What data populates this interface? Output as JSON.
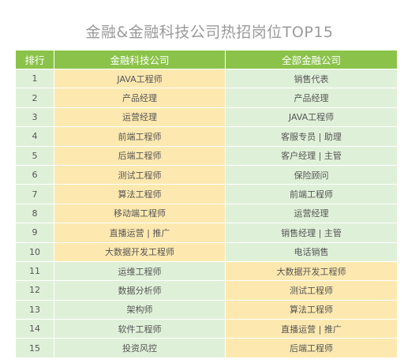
{
  "title": "金融&金融科技公司热招岗位TOP15",
  "headers": {
    "rank": "排行",
    "fintech": "金融科技公司",
    "finance": "全部金融公司"
  },
  "colors": {
    "header": "#8bc34a",
    "green": "#dff0d8",
    "yellow": "#fde9b0"
  },
  "rows": [
    {
      "rank": "1",
      "fintech": "JAVA工程师",
      "finance": "销售代表"
    },
    {
      "rank": "2",
      "fintech": "产品经理",
      "finance": "产品经理"
    },
    {
      "rank": "3",
      "fintech": "运营经理",
      "finance": "JAVA工程师"
    },
    {
      "rank": "4",
      "fintech": "前端工程师",
      "finance": "客服专员 | 助理"
    },
    {
      "rank": "5",
      "fintech": "后端工程师",
      "finance": "客户经理 | 主管"
    },
    {
      "rank": "6",
      "fintech": "测试工程师",
      "finance": "保险顾问"
    },
    {
      "rank": "7",
      "fintech": "算法工程师",
      "finance": "前端工程师"
    },
    {
      "rank": "8",
      "fintech": "移动端工程师",
      "finance": "运营经理"
    },
    {
      "rank": "9",
      "fintech": "直播运营 | 推广",
      "finance": "销售经理 | 主管"
    },
    {
      "rank": "10",
      "fintech": "大数据开发工程师",
      "finance": "电话销售"
    },
    {
      "rank": "11",
      "fintech": "运维工程师",
      "finance": "大数据开发工程师"
    },
    {
      "rank": "12",
      "fintech": "数据分析师",
      "finance": "测试工程师"
    },
    {
      "rank": "13",
      "fintech": "架构师",
      "finance": "算法工程师"
    },
    {
      "rank": "14",
      "fintech": "软件工程师",
      "finance": "直播运营 | 推广"
    },
    {
      "rank": "15",
      "fintech": "投资风控",
      "finance": "后端工程师"
    }
  ]
}
